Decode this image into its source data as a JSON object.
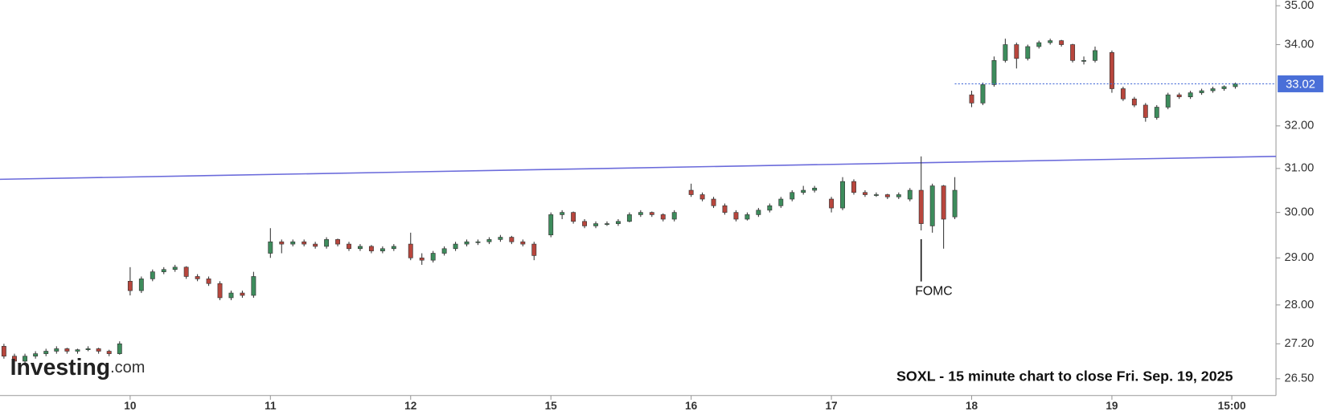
{
  "chart_data": {
    "type": "candlestick",
    "title": "SOXL - 15 minute chart to close Fri. Sep. 19, 2025",
    "watermark": {
      "brand": "Investing",
      "domain": ".com"
    },
    "log_scale": true,
    "up_color": "#3d8c5c",
    "down_color": "#b8463d",
    "xlim": [
      0.072,
      9.17
    ],
    "ylim": [
      26.17,
      35.15
    ],
    "xticks": [
      {
        "value": 1,
        "label": "10"
      },
      {
        "value": 2,
        "label": "11"
      },
      {
        "value": 3,
        "label": "12"
      },
      {
        "value": 4,
        "label": "15"
      },
      {
        "value": 5,
        "label": "16"
      },
      {
        "value": 6,
        "label": "17"
      },
      {
        "value": 7,
        "label": "18"
      },
      {
        "value": 8,
        "label": "19"
      },
      {
        "value": 8.855,
        "label": "15:00"
      }
    ],
    "yticks": [
      {
        "value": 35,
        "label": "35.00"
      },
      {
        "value": 34,
        "label": "34.00"
      },
      {
        "value": 32,
        "label": "32.00"
      },
      {
        "value": 31,
        "label": "31.00"
      },
      {
        "value": 30,
        "label": "30.00"
      },
      {
        "value": 29,
        "label": "29.00"
      },
      {
        "value": 28,
        "label": "28.00"
      },
      {
        "value": 27.2,
        "label": "27.20"
      },
      {
        "value": 26.5,
        "label": "26.50"
      }
    ],
    "last_price": 33.02,
    "last_price_color": "#4a6fd8",
    "trendline": {
      "x": [
        0.072,
        9.17
      ],
      "y": [
        30.75,
        31.28
      ],
      "color": "#6b6bdb"
    },
    "annotations": [
      {
        "text": "FOMC",
        "x": 6.64
      }
    ],
    "x": [
      0.1,
      0.175,
      0.25,
      0.325,
      0.4,
      0.475,
      0.55,
      0.625,
      0.7,
      0.775,
      0.85,
      0.925,
      1,
      1.08,
      1.16,
      1.24,
      1.32,
      1.4,
      1.48,
      1.56,
      1.64,
      1.72,
      1.8,
      1.88,
      2,
      2.08,
      2.16,
      2.24,
      2.32,
      2.4,
      2.48,
      2.56,
      2.64,
      2.72,
      2.8,
      2.88,
      3,
      3.08,
      3.16,
      3.24,
      3.32,
      3.4,
      3.48,
      3.56,
      3.64,
      3.72,
      3.8,
      3.88,
      4,
      4.08,
      4.16,
      4.24,
      4.32,
      4.4,
      4.48,
      4.56,
      4.64,
      4.72,
      4.8,
      4.88,
      5,
      5.08,
      5.16,
      5.24,
      5.32,
      5.4,
      5.48,
      5.56,
      5.64,
      5.72,
      5.8,
      5.88,
      6,
      6.08,
      6.16,
      6.24,
      6.32,
      6.4,
      6.48,
      6.56,
      6.64,
      6.72,
      6.8,
      6.88,
      7,
      7.08,
      7.16,
      7.24,
      7.32,
      7.4,
      7.48,
      7.56,
      7.64,
      7.72,
      7.8,
      7.88,
      8,
      8.08,
      8.16,
      8.24,
      8.32,
      8.4,
      8.48,
      8.56,
      8.64,
      8.72,
      8.8,
      8.88
    ],
    "ohlc": [
      [
        27.15,
        27.2,
        26.9,
        26.95
      ],
      [
        26.95,
        27.0,
        26.8,
        26.85
      ],
      [
        26.85,
        27.0,
        26.8,
        26.95
      ],
      [
        26.95,
        27.05,
        26.9,
        27.0
      ],
      [
        27.0,
        27.1,
        26.95,
        27.05
      ],
      [
        27.05,
        27.15,
        27.0,
        27.1
      ],
      [
        27.1,
        27.12,
        27.0,
        27.05
      ],
      [
        27.05,
        27.1,
        27.0,
        27.08
      ],
      [
        27.08,
        27.15,
        27.05,
        27.1
      ],
      [
        27.1,
        27.12,
        27.0,
        27.05
      ],
      [
        27.05,
        27.08,
        26.95,
        27.0
      ],
      [
        27.0,
        27.25,
        26.98,
        27.2
      ],
      [
        28.5,
        28.8,
        28.2,
        28.3
      ],
      [
        28.3,
        28.6,
        28.25,
        28.55
      ],
      [
        28.55,
        28.75,
        28.5,
        28.7
      ],
      [
        28.7,
        28.8,
        28.65,
        28.75
      ],
      [
        28.75,
        28.85,
        28.7,
        28.8
      ],
      [
        28.8,
        28.82,
        28.55,
        28.6
      ],
      [
        28.6,
        28.65,
        28.5,
        28.55
      ],
      [
        28.55,
        28.6,
        28.4,
        28.45
      ],
      [
        28.45,
        28.5,
        28.1,
        28.15
      ],
      [
        28.15,
        28.3,
        28.1,
        28.25
      ],
      [
        28.25,
        28.3,
        28.15,
        28.2
      ],
      [
        28.2,
        28.7,
        28.15,
        28.6
      ],
      [
        29.1,
        29.65,
        29.0,
        29.35
      ],
      [
        29.35,
        29.4,
        29.1,
        29.3
      ],
      [
        29.3,
        29.4,
        29.25,
        29.35
      ],
      [
        29.35,
        29.4,
        29.25,
        29.3
      ],
      [
        29.3,
        29.35,
        29.2,
        29.25
      ],
      [
        29.25,
        29.45,
        29.2,
        29.4
      ],
      [
        29.4,
        29.42,
        29.25,
        29.3
      ],
      [
        29.3,
        29.35,
        29.15,
        29.2
      ],
      [
        29.2,
        29.3,
        29.15,
        29.25
      ],
      [
        29.25,
        29.28,
        29.1,
        29.15
      ],
      [
        29.15,
        29.25,
        29.1,
        29.2
      ],
      [
        29.2,
        29.3,
        29.15,
        29.25
      ],
      [
        29.3,
        29.55,
        28.95,
        29.0
      ],
      [
        29.0,
        29.1,
        28.85,
        28.95
      ],
      [
        28.95,
        29.15,
        28.9,
        29.1
      ],
      [
        29.1,
        29.25,
        29.05,
        29.2
      ],
      [
        29.2,
        29.35,
        29.15,
        29.3
      ],
      [
        29.3,
        29.4,
        29.25,
        29.35
      ],
      [
        29.35,
        29.4,
        29.28,
        29.35
      ],
      [
        29.35,
        29.45,
        29.3,
        29.4
      ],
      [
        29.4,
        29.5,
        29.35,
        29.45
      ],
      [
        29.45,
        29.48,
        29.3,
        29.35
      ],
      [
        29.35,
        29.4,
        29.25,
        29.3
      ],
      [
        29.3,
        29.35,
        28.95,
        29.05
      ],
      [
        29.5,
        30.0,
        29.45,
        29.95
      ],
      [
        29.95,
        30.05,
        29.85,
        30.0
      ],
      [
        30.0,
        30.02,
        29.75,
        29.8
      ],
      [
        29.8,
        29.85,
        29.65,
        29.7
      ],
      [
        29.7,
        29.8,
        29.65,
        29.75
      ],
      [
        29.75,
        29.8,
        29.7,
        29.75
      ],
      [
        29.75,
        29.85,
        29.7,
        29.8
      ],
      [
        29.8,
        30.0,
        29.78,
        29.95
      ],
      [
        29.95,
        30.05,
        29.9,
        30.0
      ],
      [
        30.0,
        30.02,
        29.9,
        29.95
      ],
      [
        29.95,
        29.98,
        29.8,
        29.85
      ],
      [
        29.85,
        30.05,
        29.8,
        30.0
      ],
      [
        30.5,
        30.65,
        30.35,
        30.4
      ],
      [
        30.4,
        30.45,
        30.25,
        30.3
      ],
      [
        30.3,
        30.35,
        30.1,
        30.15
      ],
      [
        30.15,
        30.2,
        29.95,
        30.0
      ],
      [
        30.0,
        30.05,
        29.8,
        29.85
      ],
      [
        29.85,
        30.0,
        29.82,
        29.95
      ],
      [
        29.95,
        30.1,
        29.9,
        30.05
      ],
      [
        30.05,
        30.2,
        30.0,
        30.15
      ],
      [
        30.15,
        30.35,
        30.1,
        30.3
      ],
      [
        30.3,
        30.5,
        30.25,
        30.45
      ],
      [
        30.45,
        30.6,
        30.4,
        30.5
      ],
      [
        30.5,
        30.6,
        30.45,
        30.55
      ],
      [
        30.3,
        30.35,
        30.0,
        30.1
      ],
      [
        30.1,
        30.8,
        30.05,
        30.7
      ],
      [
        30.7,
        30.75,
        30.4,
        30.45
      ],
      [
        30.45,
        30.5,
        30.35,
        30.4
      ],
      [
        30.4,
        30.45,
        30.35,
        30.4
      ],
      [
        30.4,
        30.42,
        30.3,
        30.35
      ],
      [
        30.35,
        30.45,
        30.3,
        30.4
      ],
      [
        30.3,
        30.55,
        30.25,
        30.5
      ],
      [
        30.5,
        31.28,
        29.6,
        29.75
      ],
      [
        29.7,
        30.65,
        29.55,
        30.6
      ],
      [
        30.6,
        30.62,
        29.2,
        29.85
      ],
      [
        29.9,
        30.8,
        29.85,
        30.5
      ],
      [
        32.75,
        32.85,
        32.45,
        32.55
      ],
      [
        32.55,
        33.05,
        32.5,
        33.0
      ],
      [
        33.0,
        33.7,
        32.95,
        33.6
      ],
      [
        33.6,
        34.15,
        33.55,
        34.0
      ],
      [
        34.0,
        34.05,
        33.4,
        33.65
      ],
      [
        33.65,
        34.0,
        33.6,
        33.95
      ],
      [
        33.95,
        34.1,
        33.9,
        34.05
      ],
      [
        34.05,
        34.15,
        34.0,
        34.1
      ],
      [
        34.1,
        34.12,
        33.95,
        34.0
      ],
      [
        34.0,
        34.02,
        33.55,
        33.6
      ],
      [
        33.6,
        33.7,
        33.5,
        33.6
      ],
      [
        33.6,
        33.95,
        33.55,
        33.85
      ],
      [
        33.8,
        33.85,
        32.8,
        32.9
      ],
      [
        32.9,
        32.95,
        32.6,
        32.65
      ],
      [
        32.65,
        32.7,
        32.45,
        32.5
      ],
      [
        32.5,
        32.55,
        32.1,
        32.2
      ],
      [
        32.2,
        32.5,
        32.15,
        32.45
      ],
      [
        32.45,
        32.8,
        32.4,
        32.75
      ],
      [
        32.75,
        32.8,
        32.65,
        32.7
      ],
      [
        32.7,
        32.85,
        32.65,
        32.8
      ],
      [
        32.8,
        32.9,
        32.75,
        32.85
      ],
      [
        32.85,
        32.95,
        32.8,
        32.9
      ],
      [
        32.9,
        32.98,
        32.85,
        32.95
      ],
      [
        32.95,
        33.05,
        32.9,
        33.02
      ]
    ]
  }
}
